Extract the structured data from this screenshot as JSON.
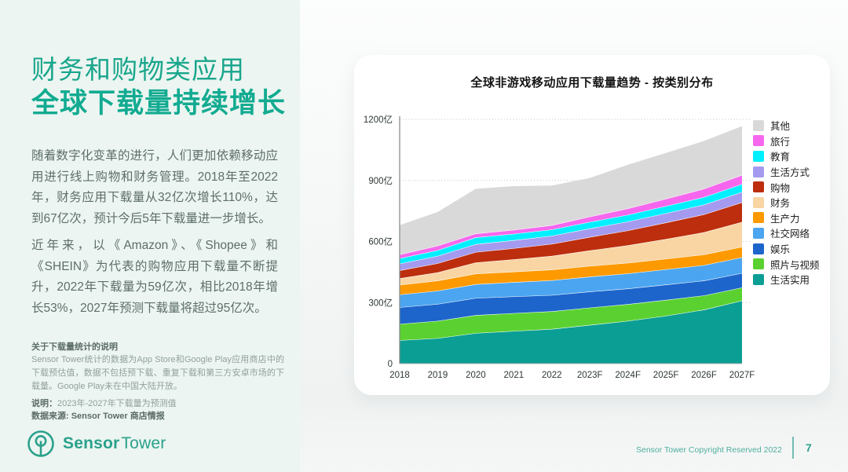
{
  "theme": {
    "left_panel_bg": "#ecf5f1",
    "accent_teal": "#12ab91",
    "body_text": "#5e6e6a",
    "card_bg": "#ffffff"
  },
  "left_panel": {
    "title_line1": "财务和购物类应用",
    "title_line2": "全球下载量持续增长",
    "paragraph1": "随着数字化变革的进行，人们更加依赖移动应用进行线上购物和财务管理。2018年至2022年，财务应用下载量从32亿次增长110%，达到67亿次，预计今后5年下载量进一步增长。",
    "paragraph2": "近年来，以《Amazon》、《Shopee》和《SHEIN》为代表的购物应用下载量不断提升，2022年下载量为59亿次，相比2018年增长53%，2027年预测下载量将超过95亿次。",
    "note_heading": "关于下载量统计的说明",
    "note_body": "Sensor Tower统计的数据为App Store和Google Play应用商店中的下载预估值，数据不包括预下载、重复下载和第三方安卓市场的下载量。Google Play未在中国大陆开放。",
    "note2_label": "说明：",
    "note2_text": "2023年-2027年下载量为预测值",
    "source_line": "数据来源: Sensor Tower 商店情报",
    "logo": {
      "bold": "Sensor",
      "regular": "Tower"
    }
  },
  "footer": {
    "copyright": "Sensor Tower Copyright Reserved 2022",
    "page_number": "7"
  },
  "chart_data": {
    "type": "area",
    "stacked": true,
    "title": "全球非游戏移动应用下载量趋势 - 按类别分布",
    "unit": "亿",
    "categories": [
      "2018",
      "2019",
      "2020",
      "2021",
      "2022",
      "2023F",
      "2024F",
      "2025F",
      "2026F",
      "2027F"
    ],
    "ylim": [
      0,
      1200
    ],
    "y_ticks": [
      0,
      300,
      600,
      900,
      1200
    ],
    "y_tick_labels": [
      "0",
      "300亿",
      "600亿",
      "900亿",
      "1200亿"
    ],
    "grid": "dotted-horizontal",
    "legend_position": "right",
    "series_note": "bottom-to-top stacking order; legend shown top-to-bottom reversed",
    "series": [
      {
        "name": "生活实用",
        "color": "#0b9e94",
        "values": [
          115,
          125,
          150,
          160,
          170,
          190,
          210,
          235,
          265,
          310
        ]
      },
      {
        "name": "照片与视频",
        "color": "#5ad130",
        "values": [
          80,
          85,
          88,
          88,
          87,
          85,
          82,
          78,
          70,
          64
        ]
      },
      {
        "name": "娱乐",
        "color": "#1d65cb",
        "values": [
          82,
          83,
          84,
          82,
          80,
          79,
          77,
          75,
          73,
          71
        ]
      },
      {
        "name": "社交网络",
        "color": "#4ba5f0",
        "values": [
          62,
          65,
          68,
          70,
          72,
          73,
          74,
          75,
          76,
          77
        ]
      },
      {
        "name": "生产力",
        "color": "#fe9900",
        "values": [
          48,
          50,
          52,
          52,
          53,
          53,
          52,
          52,
          52,
          52
        ]
      },
      {
        "name": "财务",
        "color": "#f8d5a3",
        "values": [
          32,
          40,
          55,
          60,
          67,
          76,
          86,
          97,
          109,
          122
        ]
      },
      {
        "name": "购物",
        "color": "#bc2e0d",
        "values": [
          39,
          45,
          51,
          55,
          59,
          66,
          73,
          81,
          88,
          96
        ]
      },
      {
        "name": "生活方式",
        "color": "#a49bf0",
        "values": [
          33,
          36,
          39,
          39,
          40,
          42,
          44,
          46,
          48,
          51
        ]
      },
      {
        "name": "教育",
        "color": "#00f0ff",
        "values": [
          26,
          28,
          33,
          32,
          31,
          32,
          33,
          35,
          37,
          39
        ]
      },
      {
        "name": "旅行",
        "color": "#f667ee",
        "values": [
          19,
          22,
          19,
          19,
          21,
          26,
          31,
          36,
          41,
          45
        ]
      },
      {
        "name": "其他",
        "color": "#d9d9d9",
        "values": [
          144,
          166,
          220,
          215,
          195,
          190,
          215,
          225,
          235,
          240
        ]
      }
    ]
  }
}
